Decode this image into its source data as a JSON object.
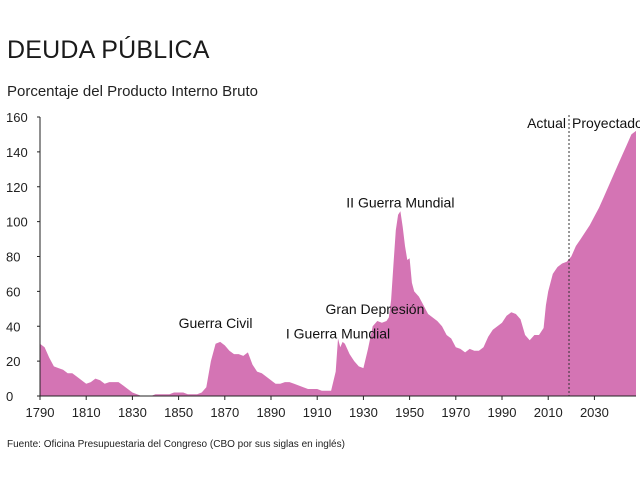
{
  "header": {
    "title": "DEUDA PÚBLICA",
    "subtitle": "Porcentaje del Producto Interno Bruto"
  },
  "footer": {
    "source": "Fuente: Oficina Presupuestaria del Congreso (CBO por sus siglas en inglés)"
  },
  "colors": {
    "area": "#d474b4",
    "axis": "#222222",
    "divider": "#333333"
  },
  "chart_data": {
    "type": "area",
    "title": "DEUDA PÚBLICA",
    "ylabel": "Porcentaje del Producto Interno Bruto",
    "xlim": [
      1790,
      2048
    ],
    "ylim": [
      0,
      160
    ],
    "grid": false,
    "x_ticks": [
      1790,
      1810,
      1830,
      1850,
      1870,
      1890,
      1910,
      1930,
      1950,
      1970,
      1990,
      2010,
      2030
    ],
    "y_ticks": [
      0,
      20,
      40,
      60,
      80,
      100,
      120,
      140,
      160
    ],
    "divider_year": 2019,
    "period_labels": {
      "left": "Actual",
      "right": "Proyectado"
    },
    "annotations": [
      {
        "text": "Guerra Civil",
        "year": 1866,
        "value": 39
      },
      {
        "text": "I Guerra Mundial",
        "year": 1919,
        "value": 33
      },
      {
        "text": "Gran Depresión",
        "year": 1935,
        "value": 47
      },
      {
        "text": "II Guerra Mundial",
        "year": 1946,
        "value": 108
      }
    ],
    "series": [
      {
        "values": [
          [
            1790,
            30
          ],
          [
            1792,
            28
          ],
          [
            1794,
            22
          ],
          [
            1796,
            17
          ],
          [
            1798,
            16
          ],
          [
            1800,
            15
          ],
          [
            1802,
            13
          ],
          [
            1804,
            13
          ],
          [
            1806,
            11
          ],
          [
            1808,
            9
          ],
          [
            1810,
            7
          ],
          [
            1812,
            8
          ],
          [
            1814,
            10
          ],
          [
            1816,
            9
          ],
          [
            1818,
            7
          ],
          [
            1820,
            8
          ],
          [
            1822,
            8
          ],
          [
            1824,
            8
          ],
          [
            1826,
            6
          ],
          [
            1828,
            4
          ],
          [
            1830,
            2
          ],
          [
            1832,
            1
          ],
          [
            1834,
            0
          ],
          [
            1836,
            0
          ],
          [
            1838,
            0
          ],
          [
            1840,
            1
          ],
          [
            1842,
            1
          ],
          [
            1844,
            1
          ],
          [
            1846,
            1
          ],
          [
            1848,
            2
          ],
          [
            1850,
            2
          ],
          [
            1852,
            2
          ],
          [
            1854,
            1
          ],
          [
            1856,
            1
          ],
          [
            1858,
            1
          ],
          [
            1860,
            2
          ],
          [
            1862,
            5
          ],
          [
            1864,
            20
          ],
          [
            1866,
            30
          ],
          [
            1868,
            31
          ],
          [
            1870,
            29
          ],
          [
            1872,
            26
          ],
          [
            1874,
            24
          ],
          [
            1876,
            24
          ],
          [
            1878,
            23
          ],
          [
            1880,
            25
          ],
          [
            1882,
            18
          ],
          [
            1884,
            14
          ],
          [
            1886,
            13
          ],
          [
            1888,
            11
          ],
          [
            1890,
            9
          ],
          [
            1892,
            7
          ],
          [
            1894,
            7
          ],
          [
            1896,
            8
          ],
          [
            1898,
            8
          ],
          [
            1900,
            7
          ],
          [
            1902,
            6
          ],
          [
            1904,
            5
          ],
          [
            1906,
            4
          ],
          [
            1908,
            4
          ],
          [
            1910,
            4
          ],
          [
            1912,
            3
          ],
          [
            1914,
            3
          ],
          [
            1916,
            3
          ],
          [
            1918,
            14
          ],
          [
            1919,
            33
          ],
          [
            1920,
            28
          ],
          [
            1921,
            31
          ],
          [
            1922,
            30
          ],
          [
            1924,
            24
          ],
          [
            1926,
            20
          ],
          [
            1928,
            17
          ],
          [
            1930,
            16
          ],
          [
            1932,
            27
          ],
          [
            1934,
            40
          ],
          [
            1936,
            43
          ],
          [
            1938,
            42
          ],
          [
            1940,
            43
          ],
          [
            1941,
            45
          ],
          [
            1942,
            55
          ],
          [
            1943,
            75
          ],
          [
            1944,
            95
          ],
          [
            1945,
            104
          ],
          [
            1946,
            106
          ],
          [
            1947,
            97
          ],
          [
            1948,
            86
          ],
          [
            1949,
            78
          ],
          [
            1950,
            79
          ],
          [
            1951,
            65
          ],
          [
            1952,
            60
          ],
          [
            1954,
            57
          ],
          [
            1956,
            52
          ],
          [
            1958,
            47
          ],
          [
            1960,
            45
          ],
          [
            1962,
            43
          ],
          [
            1964,
            40
          ],
          [
            1966,
            35
          ],
          [
            1968,
            33
          ],
          [
            1970,
            28
          ],
          [
            1972,
            27
          ],
          [
            1974,
            25
          ],
          [
            1976,
            27
          ],
          [
            1978,
            26
          ],
          [
            1980,
            26
          ],
          [
            1982,
            28
          ],
          [
            1984,
            34
          ],
          [
            1986,
            38
          ],
          [
            1988,
            40
          ],
          [
            1990,
            42
          ],
          [
            1992,
            46
          ],
          [
            1994,
            48
          ],
          [
            1996,
            47
          ],
          [
            1998,
            44
          ],
          [
            2000,
            35
          ],
          [
            2002,
            32
          ],
          [
            2004,
            35
          ],
          [
            2006,
            35
          ],
          [
            2008,
            39
          ],
          [
            2009,
            52
          ],
          [
            2010,
            60
          ],
          [
            2012,
            70
          ],
          [
            2014,
            74
          ],
          [
            2016,
            76
          ],
          [
            2018,
            77
          ],
          [
            2020,
            80
          ],
          [
            2022,
            86
          ],
          [
            2024,
            90
          ],
          [
            2026,
            94
          ],
          [
            2028,
            98
          ],
          [
            2030,
            103
          ],
          [
            2032,
            108
          ],
          [
            2034,
            114
          ],
          [
            2036,
            120
          ],
          [
            2038,
            126
          ],
          [
            2040,
            132
          ],
          [
            2042,
            138
          ],
          [
            2044,
            144
          ],
          [
            2046,
            150
          ],
          [
            2048,
            152
          ]
        ]
      }
    ]
  }
}
